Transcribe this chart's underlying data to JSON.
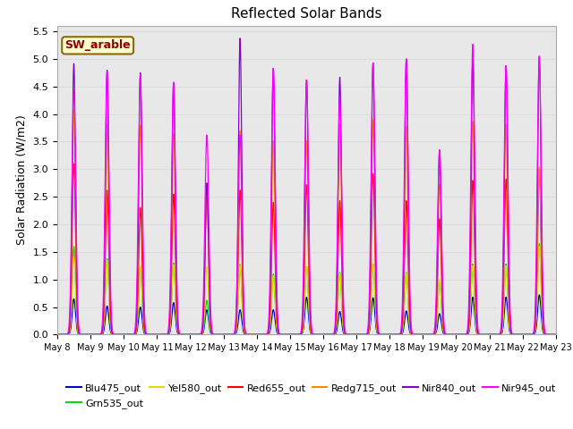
{
  "title": "Reflected Solar Bands",
  "ylabel": "Solar Radiation (W/m2)",
  "annotation": "SW_arable",
  "annotation_color": "#8B0000",
  "annotation_bg": "#FFFFCC",
  "annotation_border": "#8B6914",
  "ylim": [
    0,
    5.6
  ],
  "yticks": [
    0.0,
    0.5,
    1.0,
    1.5,
    2.0,
    2.5,
    3.0,
    3.5,
    4.0,
    4.5,
    5.0,
    5.5
  ],
  "grid_color": "#dddddd",
  "bg_color": "#e8e8e8",
  "n_days": 15,
  "start_day": 8,
  "peaks_nir840": [
    4.92,
    4.8,
    4.75,
    4.55,
    2.75,
    5.38,
    4.83,
    4.62,
    4.67,
    4.93,
    5.0,
    3.35,
    5.0,
    4.88,
    5.05
  ],
  "peaks_nir945": [
    4.42,
    4.78,
    4.72,
    4.58,
    3.62,
    3.62,
    4.83,
    4.62,
    4.25,
    4.93,
    5.0,
    3.35,
    5.27,
    4.88,
    5.05
  ],
  "peaks_red655": [
    3.1,
    2.62,
    2.3,
    2.55,
    2.62,
    2.62,
    2.4,
    2.72,
    2.43,
    2.92,
    2.43,
    2.1,
    2.8,
    2.82,
    3.0
  ],
  "peaks_redg715": [
    4.08,
    3.82,
    3.8,
    3.65,
    2.75,
    3.7,
    3.52,
    3.52,
    3.82,
    3.9,
    3.78,
    2.73,
    3.87,
    3.82,
    3.04
  ],
  "peaks_yel580": [
    1.4,
    1.35,
    1.25,
    1.27,
    1.23,
    1.25,
    1.07,
    1.22,
    1.12,
    1.27,
    1.12,
    1.0,
    1.25,
    1.25,
    1.6
  ],
  "peaks_grn535": [
    1.6,
    1.38,
    1.23,
    1.3,
    0.62,
    1.27,
    1.1,
    1.23,
    1.13,
    1.28,
    1.13,
    0.98,
    1.28,
    1.28,
    1.65
  ],
  "peaks_blu475": [
    0.65,
    0.52,
    0.5,
    0.58,
    0.45,
    0.45,
    0.45,
    0.68,
    0.42,
    0.67,
    0.43,
    0.38,
    0.68,
    0.68,
    0.72
  ],
  "series_colors": {
    "Blu475_out": "#0000CC",
    "Grn535_out": "#00DD00",
    "Yel580_out": "#DDDD00",
    "Red655_out": "#FF0000",
    "Redg715_out": "#FF8800",
    "Nir840_out": "#8800CC",
    "Nir945_out": "#FF00FF"
  }
}
